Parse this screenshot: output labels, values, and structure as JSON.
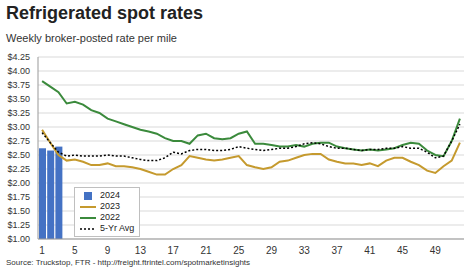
{
  "chart_data": {
    "type": "line",
    "title": "Refrigerated spot rates",
    "subtitle": "Weekly broker-posted rate per mile",
    "annotations": [
      "Source: Truckstop, FTR - http://freight.ftrintel.com/spotmarketinsights"
    ],
    "x": [
      1,
      2,
      3,
      4,
      5,
      6,
      7,
      8,
      9,
      10,
      11,
      12,
      13,
      14,
      15,
      16,
      17,
      18,
      19,
      20,
      21,
      22,
      23,
      24,
      25,
      26,
      27,
      28,
      29,
      30,
      31,
      32,
      33,
      34,
      35,
      36,
      37,
      38,
      39,
      40,
      41,
      42,
      43,
      44,
      45,
      46,
      47,
      48,
      49,
      50,
      51,
      52
    ],
    "xlim": [
      0.5,
      52.5
    ],
    "xticks": [
      1,
      5,
      9,
      13,
      17,
      21,
      25,
      29,
      33,
      37,
      41,
      45,
      49
    ],
    "ylim": [
      1.0,
      4.25
    ],
    "yticks": [
      {
        "value": 1.0,
        "label": "$1.00"
      },
      {
        "value": 1.25,
        "label": "$1.25"
      },
      {
        "value": 1.5,
        "label": "$1.50"
      },
      {
        "value": 1.75,
        "label": "$1.75"
      },
      {
        "value": 2.0,
        "label": "$2.00"
      },
      {
        "value": 2.25,
        "label": "$2.25"
      },
      {
        "value": 2.5,
        "label": "$2.50"
      },
      {
        "value": 2.75,
        "label": "$2.75"
      },
      {
        "value": 3.0,
        "label": "$3.00"
      },
      {
        "value": 3.25,
        "label": "$3.25"
      },
      {
        "value": 3.5,
        "label": "$3.50"
      },
      {
        "value": 3.75,
        "label": "$3.75"
      },
      {
        "value": 4.0,
        "label": "$4.00"
      },
      {
        "value": 4.25,
        "label": "$4.25"
      }
    ],
    "grid": true,
    "legend": "lower left",
    "series": [
      {
        "name": "2024",
        "type": "bar",
        "color": "#4472c4",
        "values": [
          2.62,
          2.58,
          2.65,
          null,
          null,
          null,
          null,
          null,
          null,
          null,
          null,
          null,
          null,
          null,
          null,
          null,
          null,
          null,
          null,
          null,
          null,
          null,
          null,
          null,
          null,
          null,
          null,
          null,
          null,
          null,
          null,
          null,
          null,
          null,
          null,
          null,
          null,
          null,
          null,
          null,
          null,
          null,
          null,
          null,
          null,
          null,
          null,
          null,
          null,
          null,
          null,
          null
        ]
      },
      {
        "name": "2023",
        "type": "line",
        "color": "#c59a2e",
        "line_style": "solid",
        "values": [
          2.95,
          2.72,
          2.5,
          2.4,
          2.42,
          2.38,
          2.32,
          2.32,
          2.35,
          2.3,
          2.3,
          2.28,
          2.25,
          2.2,
          2.15,
          2.15,
          2.25,
          2.32,
          2.48,
          2.45,
          2.42,
          2.4,
          2.42,
          2.45,
          2.48,
          2.32,
          2.28,
          2.25,
          2.28,
          2.38,
          2.4,
          2.45,
          2.5,
          2.52,
          2.52,
          2.42,
          2.38,
          2.35,
          2.35,
          2.32,
          2.35,
          2.3,
          2.4,
          2.45,
          2.45,
          2.38,
          2.32,
          2.22,
          2.18,
          2.3,
          2.4,
          2.72
        ]
      },
      {
        "name": "2022",
        "type": "line",
        "color": "#3b8a3c",
        "line_style": "solid",
        "values": [
          3.82,
          3.72,
          3.62,
          3.42,
          3.45,
          3.4,
          3.3,
          3.25,
          3.15,
          3.1,
          3.05,
          3.0,
          2.95,
          2.92,
          2.88,
          2.8,
          2.75,
          2.75,
          2.7,
          2.85,
          2.88,
          2.8,
          2.78,
          2.8,
          2.88,
          2.92,
          2.7,
          2.7,
          2.68,
          2.65,
          2.65,
          2.68,
          2.65,
          2.7,
          2.72,
          2.72,
          2.65,
          2.62,
          2.6,
          2.58,
          2.6,
          2.58,
          2.6,
          2.62,
          2.68,
          2.72,
          2.7,
          2.58,
          2.5,
          2.48,
          2.75,
          3.15
        ]
      },
      {
        "name": "5-Yr Avg",
        "type": "line",
        "color": "#000000",
        "line_style": "dotted",
        "values": [
          2.9,
          2.72,
          2.55,
          2.48,
          2.5,
          2.48,
          2.48,
          2.48,
          2.5,
          2.48,
          2.48,
          2.45,
          2.42,
          2.4,
          2.4,
          2.45,
          2.55,
          2.52,
          2.58,
          2.6,
          2.6,
          2.58,
          2.58,
          2.6,
          2.65,
          2.62,
          2.6,
          2.58,
          2.6,
          2.62,
          2.62,
          2.65,
          2.7,
          2.72,
          2.7,
          2.65,
          2.62,
          2.62,
          2.6,
          2.58,
          2.6,
          2.6,
          2.62,
          2.62,
          2.65,
          2.62,
          2.62,
          2.55,
          2.45,
          2.48,
          2.75,
          3.05
        ]
      }
    ]
  }
}
